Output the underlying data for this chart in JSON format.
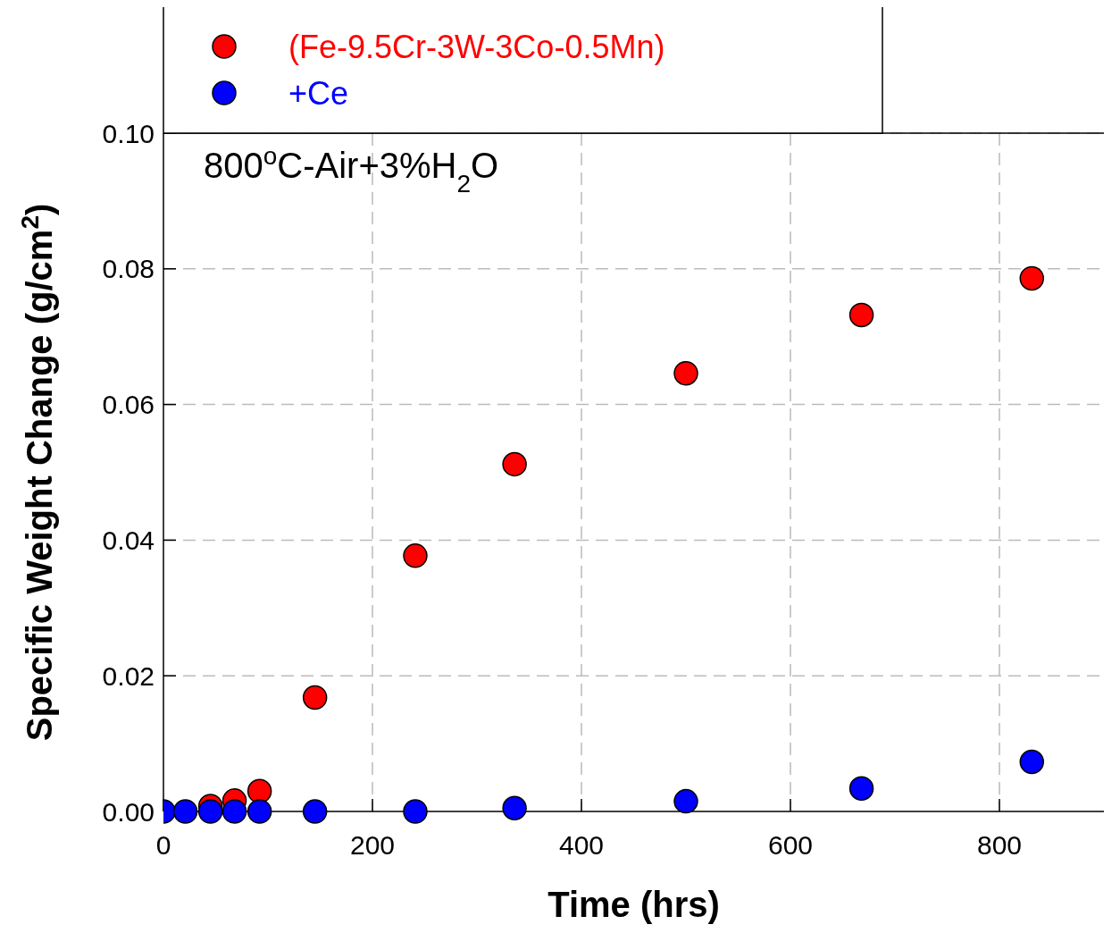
{
  "chart_data": {
    "type": "scatter",
    "xlabel": "Time (hrs)",
    "ylabel": "Specific Weight Change (g/cm$^{2}$)",
    "annotations": [
      "800$^{o}$C-Air+3%H$_{2}$O"
    ],
    "xlim": [
      0,
      900
    ],
    "xticks": [
      0,
      200,
      400,
      600,
      800
    ],
    "ylim": [
      0,
      0.1
    ],
    "yticks": [
      {
        "value": 0,
        "label": "0.00"
      },
      {
        "value": 0.02,
        "label": "0.02"
      },
      {
        "value": 0.04,
        "label": "0.04"
      },
      {
        "value": 0.06,
        "label": "0.06"
      },
      {
        "value": 0.08,
        "label": "0.08"
      },
      {
        "value": 0.1,
        "label": "0.10"
      }
    ],
    "grid": true,
    "legend": "top left",
    "marker": "circle",
    "series": [
      {
        "name": "(Fe-9.5Cr-3W-3Co-0.5Mn)",
        "color": "#ff0000",
        "x": [
          45,
          68,
          92,
          145,
          241,
          336,
          500,
          668,
          831
        ],
        "values": [
          0.0008,
          0.0016,
          0.003,
          0.0168,
          0.0377,
          0.0512,
          0.0646,
          0.0732,
          0.0786
        ]
      },
      {
        "name": "+Ce",
        "color": "#0000ff",
        "x": [
          0,
          21,
          45,
          68,
          92,
          145,
          241,
          336,
          500,
          668,
          831
        ],
        "values": [
          0,
          0,
          0,
          0,
          0,
          0,
          0,
          0.0005,
          0.0015,
          0.0034,
          0.0073
        ]
      }
    ]
  }
}
